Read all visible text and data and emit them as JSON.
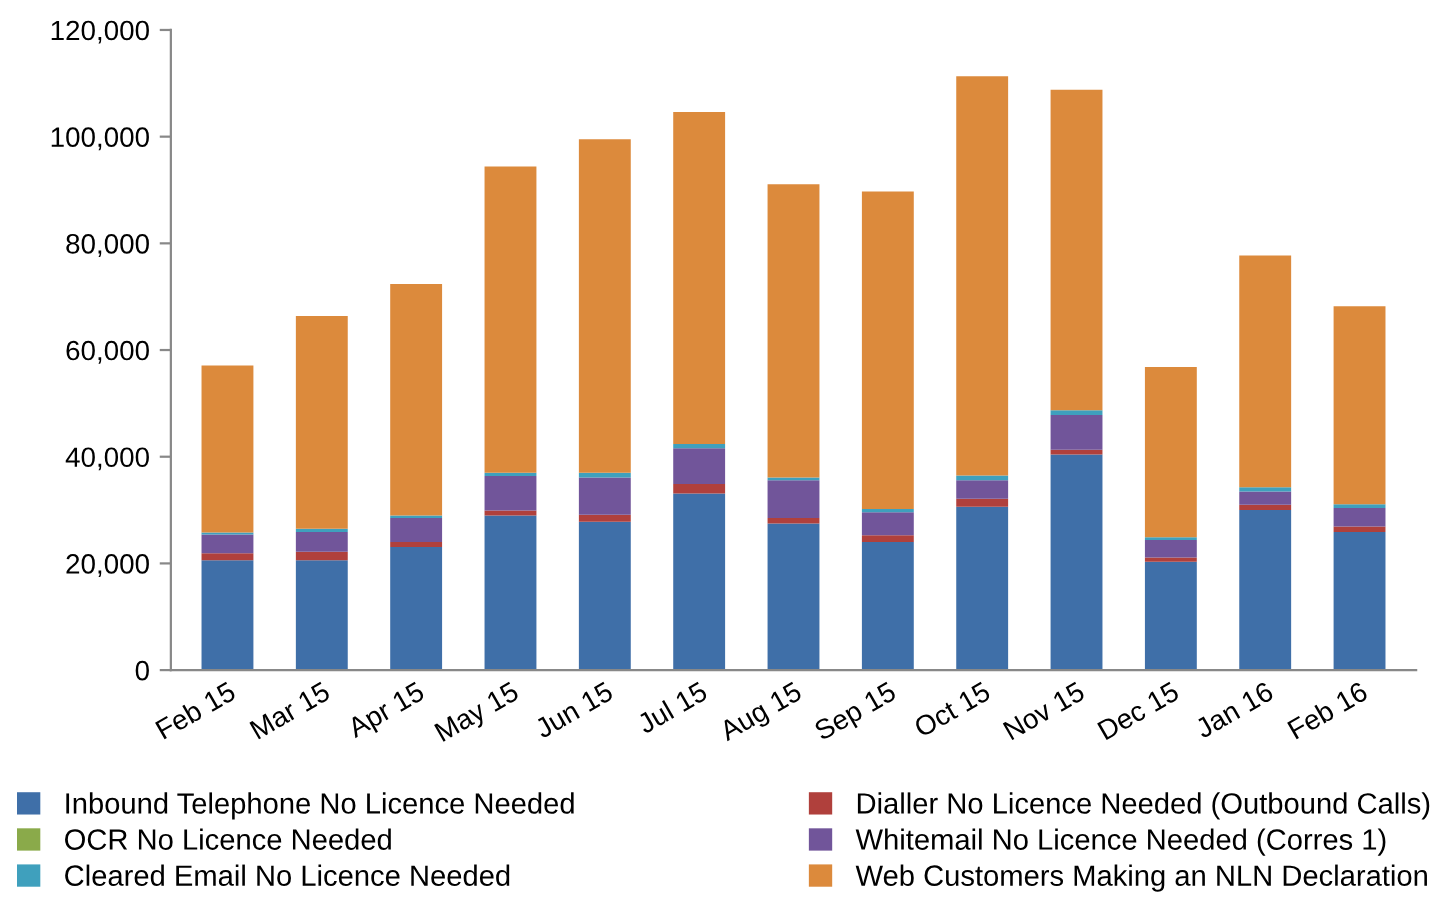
{
  "chart_data": {
    "type": "bar",
    "stacked": true,
    "legend": "bottom",
    "grid": false,
    "categories": [
      "Feb 15",
      "Mar 15",
      "Apr 15",
      "May 15",
      "Jun 15",
      "Jul 15",
      "Aug 15",
      "Sep 15",
      "Oct 15",
      "Nov 15",
      "Dec 15",
      "Jan 16",
      "Feb 16"
    ],
    "ylim": [
      0,
      120000
    ],
    "yticks": [
      {
        "value": 0,
        "label": "0"
      },
      {
        "value": 20000,
        "label": "20,000"
      },
      {
        "value": 40000,
        "label": "40,000"
      },
      {
        "value": 60000,
        "label": "60,000"
      },
      {
        "value": 80000,
        "label": "80,000"
      },
      {
        "value": 100000,
        "label": "100,000"
      },
      {
        "value": 120000,
        "label": "120,000"
      }
    ],
    "series": [
      {
        "name": "Inbound Telephone No Licence Needed",
        "color": "#3f6fa8",
        "values": [
          20600,
          20600,
          23100,
          29000,
          27800,
          33100,
          27500,
          24000,
          30600,
          40400,
          20300,
          30000,
          25900
        ]
      },
      {
        "name": "Dialler No Licence Needed (Outbound Calls)",
        "color": "#b0403c",
        "values": [
          1300,
          1600,
          900,
          900,
          1300,
          1800,
          1000,
          1300,
          1500,
          900,
          800,
          1000,
          1000
        ]
      },
      {
        "name": "OCR No Licence Needed",
        "color": "#8aaa4a",
        "values": [
          0,
          0,
          0,
          0,
          0,
          0,
          0,
          0,
          0,
          0,
          0,
          0,
          0
        ]
      },
      {
        "name": "Whitemail No Licence Needed (Corres 1)",
        "color": "#71559a",
        "values": [
          3500,
          3700,
          4500,
          6500,
          7000,
          6700,
          7100,
          4300,
          3500,
          6500,
          3300,
          2500,
          3500
        ]
      },
      {
        "name": "Cleared Email No Licence Needed",
        "color": "#3fa0bd",
        "values": [
          400,
          600,
          500,
          600,
          900,
          800,
          500,
          600,
          900,
          900,
          500,
          800,
          700
        ]
      },
      {
        "name": "Web Customers Making an NLN Declaration",
        "color": "#dc8a3c",
        "values": [
          31300,
          39900,
          43400,
          57400,
          62500,
          62200,
          55000,
          59500,
          74800,
          60100,
          31900,
          43400,
          37100
        ]
      }
    ]
  }
}
